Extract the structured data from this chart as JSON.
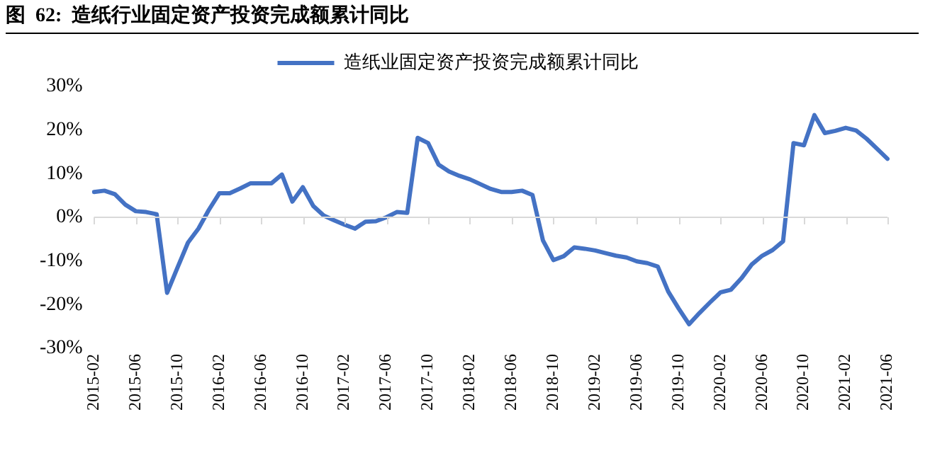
{
  "chart_data": {
    "type": "line",
    "title": "图  62:  造纸行业固定资产投资完成额累计同比",
    "categories": [
      "2015-02",
      null,
      null,
      null,
      "2015-06",
      null,
      null,
      null,
      "2015-10",
      null,
      null,
      null,
      "2016-02",
      null,
      null,
      null,
      "2016-06",
      null,
      null,
      null,
      "2016-10",
      null,
      null,
      null,
      "2017-02",
      null,
      null,
      null,
      "2017-06",
      null,
      null,
      null,
      "2017-10",
      null,
      null,
      null,
      "2018-02",
      null,
      null,
      null,
      "2018-06",
      null,
      null,
      null,
      "2018-10",
      null,
      null,
      null,
      "2019-02",
      null,
      null,
      null,
      "2019-06",
      null,
      null,
      null,
      "2019-10",
      null,
      null,
      null,
      "2020-02",
      null,
      null,
      null,
      "2020-06",
      null,
      null,
      null,
      "2020-10",
      null,
      null,
      null,
      "2021-02",
      null,
      null,
      null,
      "2021-06"
    ],
    "series": [
      {
        "name": "造纸业固定资产投资完成额累计同比",
        "color": "#4472c4",
        "values": [
          5.8,
          6.1,
          5.3,
          2.9,
          1.4,
          1.2,
          0.7,
          -17.3,
          -11.5,
          -5.8,
          -2.6,
          1.7,
          5.5,
          5.5,
          6.6,
          7.8,
          7.8,
          7.8,
          9.8,
          3.6,
          6.9,
          2.6,
          0.4,
          -0.7,
          -1.7,
          -2.6,
          -1.0,
          -0.9,
          0,
          1.2,
          1.0,
          18.2,
          17.0,
          12.1,
          10.5,
          9.5,
          8.7,
          7.6,
          6.5,
          5.8,
          5.8,
          6.1,
          5.1,
          -5.3,
          -9.8,
          -8.9,
          -6.9,
          -7.2,
          -7.6,
          -8.2,
          -8.8,
          -9.2,
          -10.1,
          -10.5,
          -11.3,
          -17.0,
          -20.9,
          -24.5,
          -21.9,
          -19.5,
          -17.2,
          -16.6,
          -14.0,
          -10.8,
          -8.8,
          -7.5,
          -5.5,
          17.0,
          16.5,
          23.4,
          19.3,
          19.8,
          20.5,
          19.9,
          18.0,
          15.7,
          13.4
        ]
      }
    ],
    "ylim": [
      -30,
      30
    ],
    "yticks": [
      {
        "value": -30,
        "label": "-30%"
      },
      {
        "value": -20,
        "label": "-20%"
      },
      {
        "value": -10,
        "label": "-10%"
      },
      {
        "value": 0,
        "label": "0%"
      },
      {
        "value": 10,
        "label": "10%"
      },
      {
        "value": 20,
        "label": "20%"
      },
      {
        "value": 30,
        "label": "30%"
      }
    ],
    "legend": "top",
    "marker": "none",
    "line_style": "solid"
  }
}
